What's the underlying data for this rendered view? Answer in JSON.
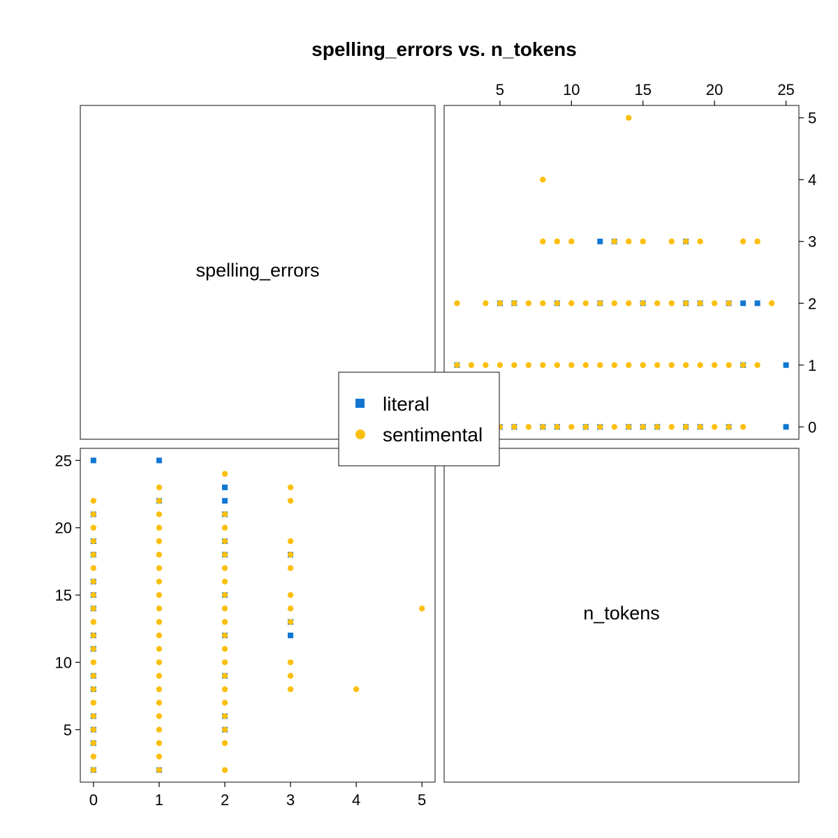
{
  "chart_data": {
    "type": "scatter",
    "title": "spelling_errors vs. n_tokens",
    "variables": [
      "spelling_errors",
      "n_tokens"
    ],
    "colors": {
      "literal": "#1177d1",
      "sentimental": "#fcbf10"
    },
    "markers": {
      "literal": "square",
      "sentimental": "circle"
    },
    "legend": {
      "entries": [
        "literal",
        "sentimental"
      ],
      "position": "center"
    },
    "x_spelling_errors": {
      "range": [
        -0.2,
        5.2
      ],
      "ticks": [
        "0",
        "1",
        "2",
        "3",
        "4",
        "5"
      ]
    },
    "y_n_tokens": {
      "range": [
        1.1,
        25.9
      ],
      "ticks": [
        "5",
        "10",
        "15",
        "20",
        "25"
      ]
    },
    "grid": false,
    "series": [
      {
        "name": "literal",
        "points": [
          [
            0,
            25
          ],
          [
            1,
            25
          ],
          [
            2,
            23
          ],
          [
            2,
            22
          ],
          [
            3,
            12
          ],
          [
            0,
            21
          ],
          [
            0,
            19
          ],
          [
            0,
            18
          ],
          [
            0,
            16
          ],
          [
            0,
            15
          ],
          [
            0,
            14
          ],
          [
            0,
            12
          ],
          [
            0,
            11
          ],
          [
            0,
            9
          ],
          [
            0,
            8
          ],
          [
            0,
            6
          ],
          [
            0,
            5
          ],
          [
            0,
            4
          ],
          [
            0,
            2
          ],
          [
            1,
            22
          ],
          [
            1,
            2
          ],
          [
            2,
            21
          ],
          [
            2,
            19
          ],
          [
            2,
            18
          ],
          [
            2,
            15
          ],
          [
            2,
            12
          ],
          [
            2,
            9
          ],
          [
            2,
            6
          ],
          [
            2,
            5
          ],
          [
            3,
            18
          ],
          [
            3,
            13
          ]
        ]
      },
      {
        "name": "sentimental",
        "points": [
          [
            0,
            2
          ],
          [
            0,
            3
          ],
          [
            0,
            4
          ],
          [
            0,
            5
          ],
          [
            0,
            6
          ],
          [
            0,
            7
          ],
          [
            0,
            8
          ],
          [
            0,
            9
          ],
          [
            0,
            10
          ],
          [
            0,
            11
          ],
          [
            0,
            12
          ],
          [
            0,
            13
          ],
          [
            0,
            14
          ],
          [
            0,
            15
          ],
          [
            0,
            16
          ],
          [
            0,
            17
          ],
          [
            0,
            18
          ],
          [
            0,
            19
          ],
          [
            0,
            20
          ],
          [
            0,
            21
          ],
          [
            0,
            22
          ],
          [
            1,
            2
          ],
          [
            1,
            3
          ],
          [
            1,
            4
          ],
          [
            1,
            5
          ],
          [
            1,
            6
          ],
          [
            1,
            7
          ],
          [
            1,
            8
          ],
          [
            1,
            9
          ],
          [
            1,
            10
          ],
          [
            1,
            11
          ],
          [
            1,
            12
          ],
          [
            1,
            13
          ],
          [
            1,
            14
          ],
          [
            1,
            15
          ],
          [
            1,
            16
          ],
          [
            1,
            17
          ],
          [
            1,
            18
          ],
          [
            1,
            19
          ],
          [
            1,
            20
          ],
          [
            1,
            21
          ],
          [
            1,
            22
          ],
          [
            1,
            23
          ],
          [
            2,
            2
          ],
          [
            2,
            4
          ],
          [
            2,
            5
          ],
          [
            2,
            6
          ],
          [
            2,
            7
          ],
          [
            2,
            8
          ],
          [
            2,
            9
          ],
          [
            2,
            10
          ],
          [
            2,
            11
          ],
          [
            2,
            12
          ],
          [
            2,
            13
          ],
          [
            2,
            14
          ],
          [
            2,
            15
          ],
          [
            2,
            16
          ],
          [
            2,
            17
          ],
          [
            2,
            18
          ],
          [
            2,
            19
          ],
          [
            2,
            20
          ],
          [
            2,
            21
          ],
          [
            2,
            24
          ],
          [
            3,
            8
          ],
          [
            3,
            9
          ],
          [
            3,
            10
          ],
          [
            3,
            13
          ],
          [
            3,
            14
          ],
          [
            3,
            15
          ],
          [
            3,
            17
          ],
          [
            3,
            18
          ],
          [
            3,
            19
          ],
          [
            3,
            22
          ],
          [
            3,
            23
          ],
          [
            4,
            8
          ],
          [
            5,
            14
          ]
        ]
      }
    ]
  }
}
